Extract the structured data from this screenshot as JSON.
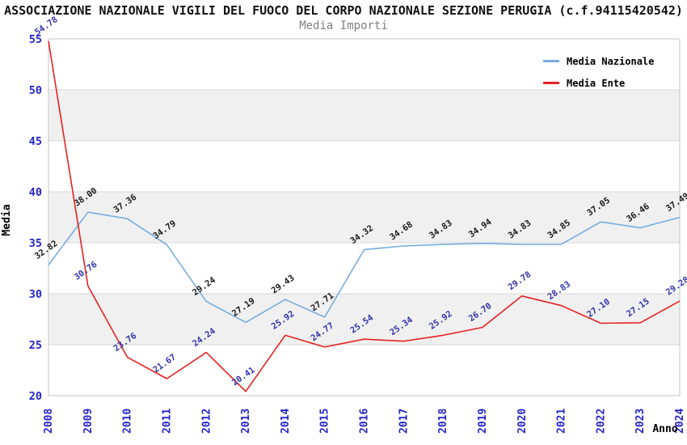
{
  "header": {
    "title": "ASSOCIAZIONE NAZIONALE VIGILI DEL FUOCO DEL CORPO NAZIONALE SEZIONE PERUGIA (c.f.94115420542)",
    "subtitle": "Media Importi"
  },
  "chart_data": {
    "type": "line",
    "title": "Media Importi",
    "xlabel": "Anno",
    "ylabel": "Media",
    "x": [
      2008,
      2009,
      2010,
      2011,
      2012,
      2013,
      2014,
      2015,
      2016,
      2017,
      2018,
      2019,
      2020,
      2021,
      2022,
      2023,
      2024
    ],
    "series": [
      {
        "name": "Media Nazionale",
        "color": "#76ade0",
        "label_color": "#1a1a1a",
        "values": [
          32.82,
          38.0,
          37.36,
          34.79,
          29.24,
          27.19,
          29.43,
          27.71,
          34.32,
          34.68,
          34.83,
          34.94,
          34.83,
          34.85,
          37.05,
          36.46,
          37.49
        ]
      },
      {
        "name": "Media Ente",
        "color": "#e62222",
        "label_color": "#3333aa",
        "values": [
          54.78,
          30.76,
          23.76,
          21.67,
          24.24,
          20.41,
          25.92,
          24.77,
          25.54,
          25.34,
          25.92,
          26.7,
          29.78,
          28.83,
          27.1,
          27.15,
          29.28
        ]
      }
    ],
    "ylim": [
      20,
      55
    ],
    "yticks": [
      20,
      25,
      30,
      35,
      40,
      45,
      50,
      55
    ],
    "grid": true,
    "legend_position": "top-right",
    "colors": {
      "axis_tick_text": "#2424c8",
      "axis_title_text": "#000000",
      "grid_line": "#d8d8d8",
      "band_fill": "#f0f0f0",
      "plot_border": "#c4c4c4"
    }
  }
}
